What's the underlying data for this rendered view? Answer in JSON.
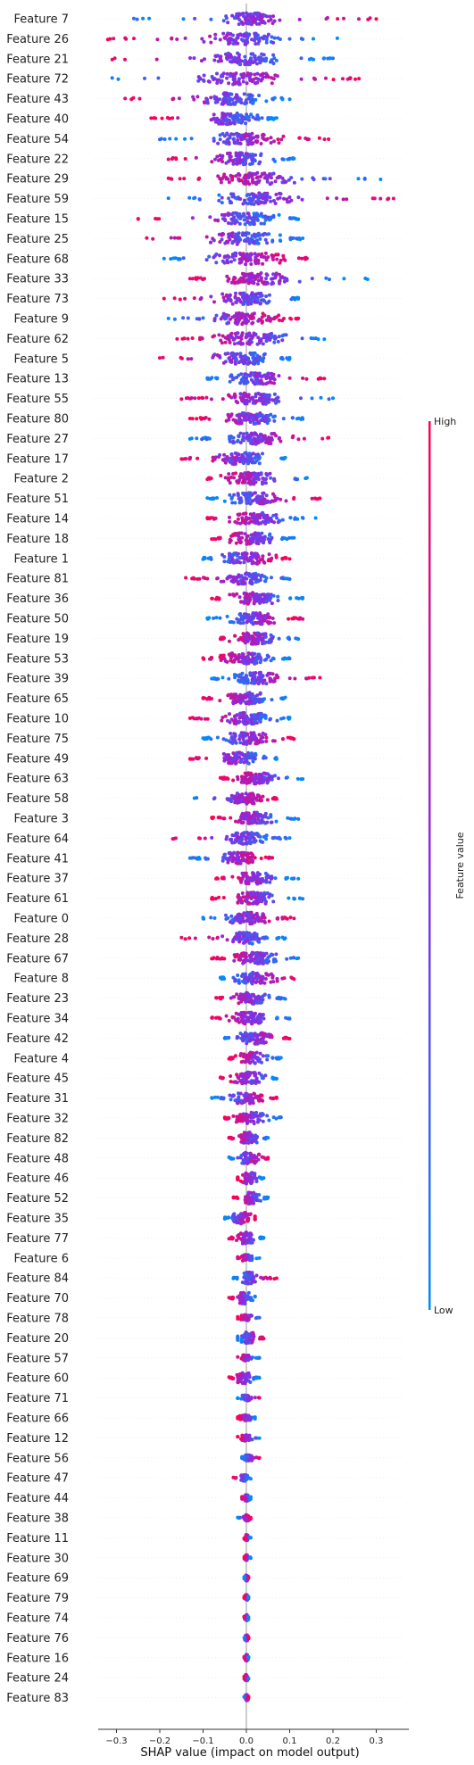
{
  "chart_data": {
    "type": "scatter",
    "subtype": "shap-beeswarm",
    "title": "",
    "xlabel": "SHAP value (impact on model output)",
    "ylabel": "",
    "xlim": [
      -0.35,
      0.37
    ],
    "xticks": [
      -0.3,
      -0.2,
      -0.1,
      0.0,
      0.1,
      0.2,
      0.3
    ],
    "tick_labels": [
      "−0.3",
      "−0.2",
      "−0.1",
      "0.0",
      "0.1",
      "0.2",
      "0.3"
    ],
    "grid": false,
    "legend": "colorbar-right",
    "colorbar": {
      "title": "Feature value",
      "high_label": "High",
      "low_label": "Low",
      "high_color": "#ff0052",
      "mid_color": "#8a2be2",
      "low_color": "#008bfb"
    },
    "features": [
      {
        "name": "Feature 7",
        "min": -0.26,
        "max": 0.3,
        "core": [
          -0.08,
          0.1
        ]
      },
      {
        "name": "Feature 26",
        "min": -0.32,
        "max": 0.21,
        "core": [
          -0.12,
          0.1
        ]
      },
      {
        "name": "Feature 21",
        "min": -0.31,
        "max": 0.2,
        "core": [
          -0.12,
          0.12
        ]
      },
      {
        "name": "Feature 72",
        "min": -0.31,
        "max": 0.26,
        "core": [
          -0.15,
          0.12
        ]
      },
      {
        "name": "Feature 43",
        "min": -0.28,
        "max": 0.1,
        "core": [
          -0.14,
          0.06
        ]
      },
      {
        "name": "Feature 40",
        "min": -0.22,
        "max": 0.07,
        "core": [
          -0.12,
          0.05
        ]
      },
      {
        "name": "Feature 54",
        "min": -0.2,
        "max": 0.19,
        "core": [
          -0.12,
          0.12
        ]
      },
      {
        "name": "Feature 22",
        "min": -0.18,
        "max": 0.11,
        "core": [
          -0.1,
          0.08
        ]
      },
      {
        "name": "Feature 29",
        "min": -0.18,
        "max": 0.31,
        "core": [
          -0.1,
          0.15
        ]
      },
      {
        "name": "Feature 59",
        "min": -0.18,
        "max": 0.34,
        "core": [
          -0.1,
          0.15
        ]
      },
      {
        "name": "Feature 15",
        "min": -0.25,
        "max": 0.12,
        "core": [
          -0.1,
          0.1
        ]
      },
      {
        "name": "Feature 25",
        "min": -0.23,
        "max": 0.13,
        "core": [
          -0.12,
          0.1
        ]
      },
      {
        "name": "Feature 68",
        "min": -0.19,
        "max": 0.14,
        "core": [
          -0.12,
          0.12
        ]
      },
      {
        "name": "Feature 33",
        "min": -0.13,
        "max": 0.28,
        "core": [
          -0.08,
          0.14
        ]
      },
      {
        "name": "Feature 73",
        "min": -0.19,
        "max": 0.12,
        "core": [
          -0.1,
          0.1
        ]
      },
      {
        "name": "Feature 9",
        "min": -0.18,
        "max": 0.12,
        "core": [
          -0.1,
          0.1
        ]
      },
      {
        "name": "Feature 62",
        "min": -0.16,
        "max": 0.18,
        "core": [
          -0.1,
          0.12
        ]
      },
      {
        "name": "Feature 5",
        "min": -0.2,
        "max": 0.1,
        "core": [
          -0.1,
          0.08
        ]
      },
      {
        "name": "Feature 13",
        "min": -0.09,
        "max": 0.18,
        "core": [
          -0.06,
          0.1
        ]
      },
      {
        "name": "Feature 55",
        "min": -0.15,
        "max": 0.2,
        "core": [
          -0.08,
          0.12
        ]
      },
      {
        "name": "Feature 80",
        "min": -0.13,
        "max": 0.13,
        "core": [
          -0.08,
          0.1
        ]
      },
      {
        "name": "Feature 27",
        "min": -0.13,
        "max": 0.19,
        "core": [
          -0.08,
          0.12
        ]
      },
      {
        "name": "Feature 17",
        "min": -0.15,
        "max": 0.09,
        "core": [
          -0.1,
          0.08
        ]
      },
      {
        "name": "Feature 2",
        "min": -0.09,
        "max": 0.14,
        "core": [
          -0.08,
          0.1
        ]
      },
      {
        "name": "Feature 51",
        "min": -0.09,
        "max": 0.17,
        "core": [
          -0.06,
          0.1
        ]
      },
      {
        "name": "Feature 14",
        "min": -0.09,
        "max": 0.16,
        "core": [
          -0.06,
          0.1
        ]
      },
      {
        "name": "Feature 18",
        "min": -0.08,
        "max": 0.11,
        "core": [
          -0.06,
          0.08
        ]
      },
      {
        "name": "Feature 1",
        "min": -0.1,
        "max": 0.1,
        "core": [
          -0.08,
          0.08
        ]
      },
      {
        "name": "Feature 81",
        "min": -0.14,
        "max": 0.1,
        "core": [
          -0.08,
          0.08
        ]
      },
      {
        "name": "Feature 36",
        "min": -0.08,
        "max": 0.13,
        "core": [
          -0.06,
          0.1
        ]
      },
      {
        "name": "Feature 50",
        "min": -0.09,
        "max": 0.13,
        "core": [
          -0.06,
          0.1
        ]
      },
      {
        "name": "Feature 19",
        "min": -0.06,
        "max": 0.12,
        "core": [
          -0.05,
          0.09
        ]
      },
      {
        "name": "Feature 53",
        "min": -0.1,
        "max": 0.1,
        "core": [
          -0.08,
          0.08
        ]
      },
      {
        "name": "Feature 39",
        "min": -0.08,
        "max": 0.17,
        "core": [
          -0.05,
          0.1
        ]
      },
      {
        "name": "Feature 65",
        "min": -0.1,
        "max": 0.09,
        "core": [
          -0.08,
          0.08
        ]
      },
      {
        "name": "Feature 10",
        "min": -0.13,
        "max": 0.1,
        "core": [
          -0.08,
          0.08
        ]
      },
      {
        "name": "Feature 75",
        "min": -0.1,
        "max": 0.11,
        "core": [
          -0.08,
          0.08
        ]
      },
      {
        "name": "Feature 49",
        "min": -0.13,
        "max": 0.07,
        "core": [
          -0.08,
          0.06
        ]
      },
      {
        "name": "Feature 63",
        "min": -0.06,
        "max": 0.13,
        "core": [
          -0.04,
          0.09
        ]
      },
      {
        "name": "Feature 58",
        "min": -0.12,
        "max": 0.07,
        "core": [
          -0.06,
          0.06
        ]
      },
      {
        "name": "Feature 3",
        "min": -0.08,
        "max": 0.12,
        "core": [
          -0.05,
          0.09
        ]
      },
      {
        "name": "Feature 64",
        "min": -0.17,
        "max": 0.1,
        "core": [
          -0.06,
          0.06
        ]
      },
      {
        "name": "Feature 41",
        "min": -0.13,
        "max": 0.06,
        "core": [
          -0.08,
          0.05
        ]
      },
      {
        "name": "Feature 37",
        "min": -0.07,
        "max": 0.12,
        "core": [
          -0.05,
          0.09
        ]
      },
      {
        "name": "Feature 61",
        "min": -0.08,
        "max": 0.13,
        "core": [
          -0.05,
          0.09
        ]
      },
      {
        "name": "Feature 0",
        "min": -0.1,
        "max": 0.11,
        "core": [
          -0.07,
          0.07
        ]
      },
      {
        "name": "Feature 28",
        "min": -0.15,
        "max": 0.09,
        "core": [
          -0.06,
          0.06
        ]
      },
      {
        "name": "Feature 67",
        "min": -0.08,
        "max": 0.12,
        "core": [
          -0.05,
          0.09
        ]
      },
      {
        "name": "Feature 8",
        "min": -0.06,
        "max": 0.11,
        "core": [
          -0.05,
          0.08
        ]
      },
      {
        "name": "Feature 23",
        "min": -0.07,
        "max": 0.09,
        "core": [
          -0.05,
          0.07
        ]
      },
      {
        "name": "Feature 34",
        "min": -0.08,
        "max": 0.1,
        "core": [
          -0.06,
          0.07
        ]
      },
      {
        "name": "Feature 42",
        "min": -0.05,
        "max": 0.1,
        "core": [
          -0.04,
          0.08
        ]
      },
      {
        "name": "Feature 4",
        "min": -0.04,
        "max": 0.08,
        "core": [
          -0.03,
          0.06
        ]
      },
      {
        "name": "Feature 45",
        "min": -0.06,
        "max": 0.07,
        "core": [
          -0.05,
          0.06
        ]
      },
      {
        "name": "Feature 31",
        "min": -0.08,
        "max": 0.07,
        "core": [
          -0.05,
          0.05
        ]
      },
      {
        "name": "Feature 32",
        "min": -0.05,
        "max": 0.08,
        "core": [
          -0.04,
          0.06
        ]
      },
      {
        "name": "Feature 82",
        "min": -0.04,
        "max": 0.05,
        "core": [
          -0.03,
          0.04
        ]
      },
      {
        "name": "Feature 48",
        "min": -0.04,
        "max": 0.05,
        "core": [
          -0.03,
          0.04
        ]
      },
      {
        "name": "Feature 46",
        "min": -0.02,
        "max": 0.04,
        "core": [
          -0.02,
          0.03
        ]
      },
      {
        "name": "Feature 52",
        "min": -0.03,
        "max": 0.05,
        "core": [
          -0.02,
          0.04
        ]
      },
      {
        "name": "Feature 35",
        "min": -0.05,
        "max": 0.02,
        "core": [
          -0.04,
          0.02
        ]
      },
      {
        "name": "Feature 77",
        "min": -0.04,
        "max": 0.04,
        "core": [
          -0.03,
          0.03
        ]
      },
      {
        "name": "Feature 6",
        "min": -0.02,
        "max": 0.03,
        "core": [
          -0.02,
          0.02
        ]
      },
      {
        "name": "Feature 84",
        "min": -0.03,
        "max": 0.07,
        "core": [
          -0.02,
          0.03
        ]
      },
      {
        "name": "Feature 70",
        "min": -0.04,
        "max": 0.02,
        "core": [
          -0.03,
          0.02
        ]
      },
      {
        "name": "Feature 78",
        "min": -0.02,
        "max": 0.03,
        "core": [
          -0.02,
          0.02
        ]
      },
      {
        "name": "Feature 20",
        "min": -0.02,
        "max": 0.04,
        "core": [
          -0.02,
          0.03
        ]
      },
      {
        "name": "Feature 57",
        "min": -0.02,
        "max": 0.03,
        "core": [
          -0.02,
          0.02
        ]
      },
      {
        "name": "Feature 60",
        "min": -0.04,
        "max": 0.03,
        "core": [
          -0.03,
          0.02
        ]
      },
      {
        "name": "Feature 71",
        "min": -0.02,
        "max": 0.03,
        "core": [
          -0.02,
          0.02
        ]
      },
      {
        "name": "Feature 66",
        "min": -0.02,
        "max": 0.02,
        "core": [
          -0.02,
          0.02
        ]
      },
      {
        "name": "Feature 12",
        "min": -0.02,
        "max": 0.03,
        "core": [
          -0.02,
          0.02
        ]
      },
      {
        "name": "Feature 56",
        "min": -0.01,
        "max": 0.03,
        "core": [
          -0.01,
          0.02
        ]
      },
      {
        "name": "Feature 47",
        "min": -0.03,
        "max": 0.01,
        "core": [
          -0.02,
          0.01
        ]
      },
      {
        "name": "Feature 44",
        "min": -0.01,
        "max": 0.01,
        "core": [
          -0.01,
          0.01
        ]
      },
      {
        "name": "Feature 38",
        "min": -0.02,
        "max": 0.01,
        "core": [
          -0.01,
          0.01
        ]
      },
      {
        "name": "Feature 11",
        "min": -0.005,
        "max": 0.01,
        "core": [
          -0.005,
          0.005
        ]
      },
      {
        "name": "Feature 30",
        "min": -0.005,
        "max": 0.01,
        "core": [
          -0.005,
          0.005
        ]
      },
      {
        "name": "Feature 69",
        "min": -0.005,
        "max": 0.005,
        "core": [
          -0.005,
          0.005
        ]
      },
      {
        "name": "Feature 79",
        "min": -0.005,
        "max": 0.005,
        "core": [
          -0.005,
          0.005
        ]
      },
      {
        "name": "Feature 74",
        "min": -0.005,
        "max": 0.005,
        "core": [
          -0.005,
          0.005
        ]
      },
      {
        "name": "Feature 76",
        "min": -0.005,
        "max": 0.005,
        "core": [
          -0.005,
          0.005
        ]
      },
      {
        "name": "Feature 16",
        "min": -0.005,
        "max": 0.005,
        "core": [
          -0.005,
          0.005
        ]
      },
      {
        "name": "Feature 24",
        "min": -0.005,
        "max": 0.005,
        "core": [
          -0.005,
          0.005
        ]
      },
      {
        "name": "Feature 83",
        "min": -0.005,
        "max": 0.005,
        "core": [
          -0.005,
          0.005
        ]
      }
    ]
  }
}
